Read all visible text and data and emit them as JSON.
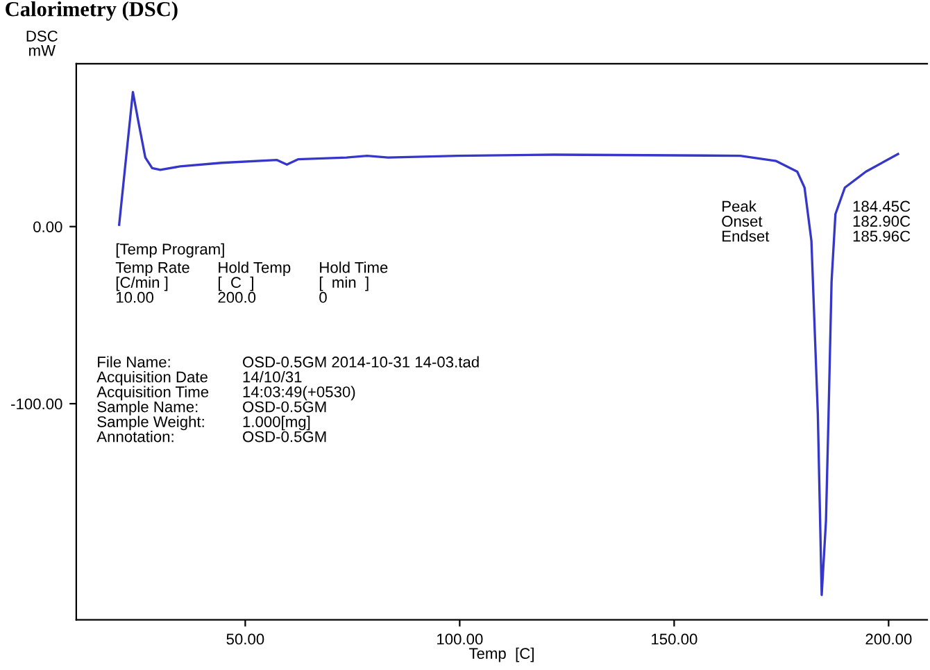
{
  "chart_data": {
    "type": "line",
    "title": "Calorimetry (DSC)",
    "xlabel": "Temp  [C]",
    "ylabel": "DSC\nmW",
    "x": [
      20.6,
      23.8,
      25.1,
      26.7,
      28.3,
      30.2,
      34.8,
      44.5,
      57.4,
      59.7,
      62.3,
      73.6,
      78.4,
      83.3,
      99.5,
      122,
      165.4,
      173.8,
      178.7,
      180.4,
      182,
      183.5,
      184.4,
      185.4,
      186.0,
      186.7,
      187.6,
      189.8,
      194.7,
      202.2
    ],
    "series": [
      {
        "color": "#3636c8",
        "values": [
          1,
          76,
          59,
          39,
          33,
          32,
          34,
          36,
          37.6,
          35,
          38,
          39,
          40,
          39,
          40,
          40.6,
          40,
          37,
          31,
          22,
          -8,
          -106,
          -208,
          -166,
          -106,
          -31,
          7,
          22,
          31,
          41
        ]
      }
    ],
    "xlim": [
      10.6,
      209
    ],
    "ylim": [
      -222,
      92
    ],
    "xticks": [
      {
        "value": 50,
        "label": "50.00"
      },
      {
        "value": 100,
        "label": "100.00"
      },
      {
        "value": 150,
        "label": "150.00"
      },
      {
        "value": 200,
        "label": "200.00"
      }
    ],
    "yticks": [
      {
        "value": 0,
        "label": "0.00"
      },
      {
        "value": -100,
        "label": "-100.00"
      }
    ],
    "annotations": [
      "[Temp Program]",
      "Temp Rate\n[C/min ]\n10.00",
      "Hold Temp\n[  C  ]\n200.0",
      "Hold Time\n[  min  ]\n0",
      "File Name:\nAcquisition Date\nAcquisition Time\nSample Name:\nSample Weight:\nAnnotation:",
      "OSD-0.5GM 2014-10-31 14-03.tad\n14/10/31\n14:03:49(+0530)\nOSD-0.5GM\n1.000[mg]\nOSD-0.5GM",
      "Peak\nOnset\nEndset",
      "184.45C\n182.90C\n185.96C"
    ]
  }
}
